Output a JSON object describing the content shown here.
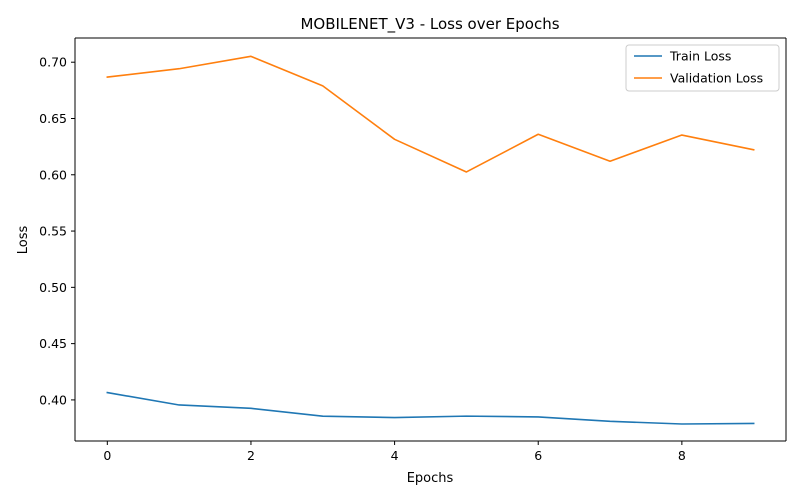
{
  "chart_data": {
    "type": "line",
    "title": "MOBILENET_V3 - Loss over Epochs",
    "xlabel": "Epochs",
    "ylabel": "Loss",
    "xlim": [
      -0.45,
      9.45
    ],
    "ylim": [
      0.3635,
      0.7215
    ],
    "x_ticks": [
      0,
      2,
      4,
      6,
      8
    ],
    "y_ticks": [
      0.4,
      0.45,
      0.5,
      0.55,
      0.6,
      0.65,
      0.7
    ],
    "grid": false,
    "legend_position": "top-right",
    "x": [
      0,
      1,
      2,
      3,
      4,
      5,
      6,
      7,
      8,
      9
    ],
    "series": [
      {
        "name": "Train Loss",
        "color": "#1f77b4",
        "values": [
          0.4065,
          0.3955,
          0.3925,
          0.3855,
          0.3843,
          0.3856,
          0.3849,
          0.381,
          0.3786,
          0.3791
        ]
      },
      {
        "name": "Validation Loss",
        "color": "#ff7f0e",
        "values": [
          0.6868,
          0.6942,
          0.7052,
          0.679,
          0.6315,
          0.6025,
          0.636,
          0.612,
          0.6353,
          0.6222
        ]
      }
    ]
  }
}
